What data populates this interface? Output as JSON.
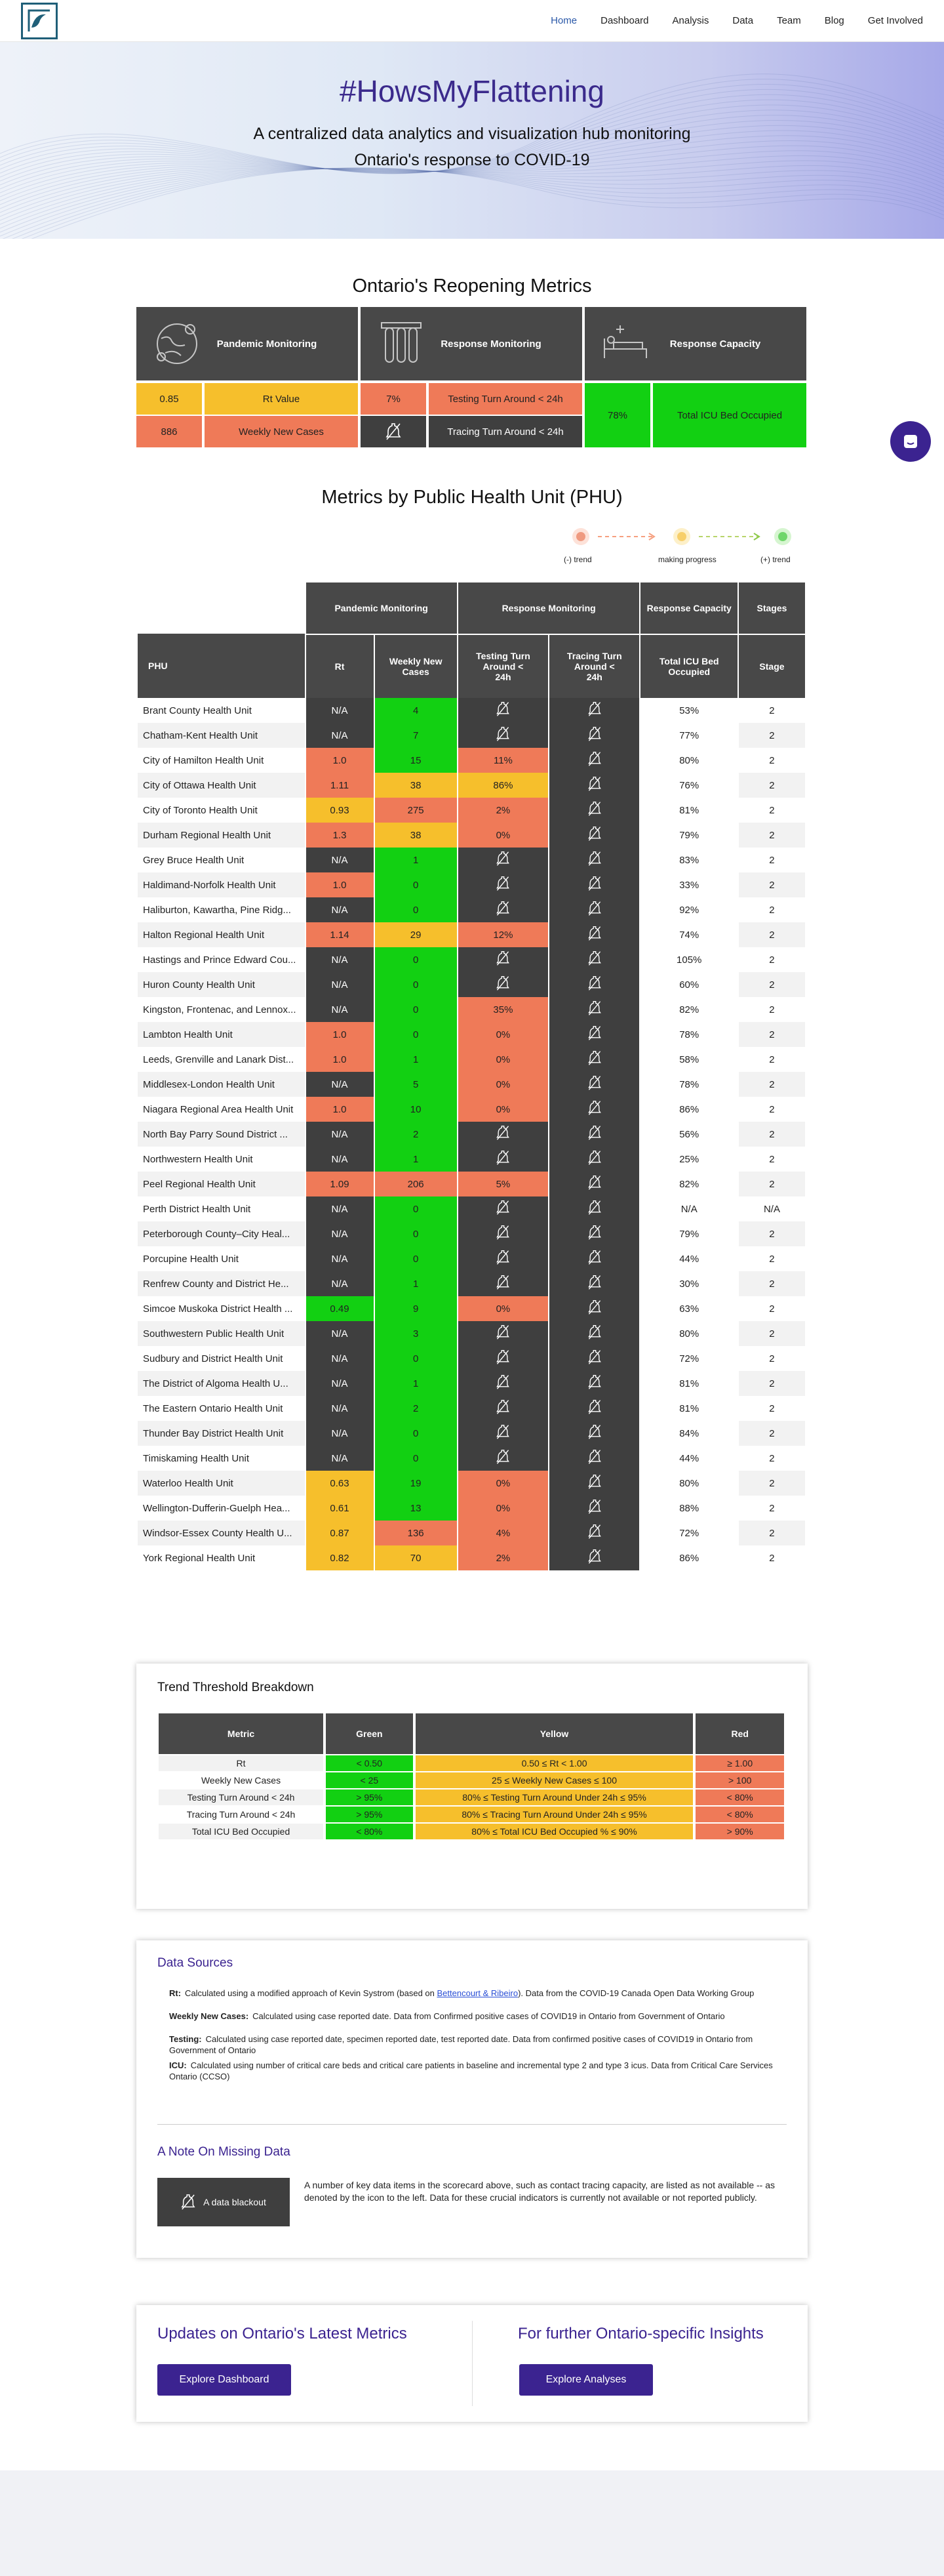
{
  "nav": {
    "logo": "logo-icon",
    "links": [
      "Home",
      "Dashboard",
      "Analysis",
      "Data",
      "Team",
      "Blog",
      "Get Involved"
    ],
    "active": "Home"
  },
  "hero": {
    "title": "#HowsMyFlattening",
    "subtitle_line1": "A centralized data analytics and visualization hub monitoring",
    "subtitle_line2": "Ontario's response to COVID-19"
  },
  "reopening": {
    "title": "Ontario's Reopening Metrics",
    "columns": [
      {
        "label": "Pandemic Monitoring",
        "icon": "virus-globe-icon"
      },
      {
        "label": "Response Monitoring",
        "icon": "test-tubes-icon"
      },
      {
        "label": "Response Capacity",
        "icon": "hospital-bed-icon"
      }
    ],
    "pandemic": [
      {
        "value": "0.85",
        "label": "Rt Value"
      },
      {
        "value": "886",
        "label": "Weekly New Cases"
      }
    ],
    "response": [
      {
        "value": "7%",
        "label": "Testing Turn Around < 24h"
      },
      {
        "value": "",
        "label": "Tracing Turn Around < 24h",
        "icon": "data-blackout-icon"
      }
    ],
    "capacity": {
      "value": "78%",
      "label": "Total ICU Bed Occupied"
    }
  },
  "phu": {
    "title": "Metrics by Public Health Unit (PHU)",
    "legend": {
      "neg": "(-) trend",
      "mid": "making progress",
      "pos": "(+) trend"
    },
    "group_headers": [
      "Pandemic Monitoring",
      "Response Monitoring",
      "Response Capacity",
      "Stages"
    ],
    "col_headers": [
      "PHU",
      "Rt",
      "Weekly New Cases",
      "Testing Turn Around < 24h",
      "Tracing Turn Around < 24h",
      "Total ICU Bed Occupied",
      "Stage"
    ],
    "rows": [
      [
        "Brant County Health Unit",
        "N/A",
        "4",
        "",
        "",
        "53%",
        "2"
      ],
      [
        "Chatham-Kent Health Unit",
        "N/A",
        "7",
        "",
        "",
        "77%",
        "2"
      ],
      [
        "City of Hamilton Health Unit",
        "1.0",
        "15",
        "11%",
        "",
        "80%",
        "2"
      ],
      [
        "City of Ottawa Health Unit",
        "1.11",
        "38",
        "86%",
        "",
        "76%",
        "2"
      ],
      [
        "City of Toronto Health Unit",
        "0.93",
        "275",
        "2%",
        "",
        "81%",
        "2"
      ],
      [
        "Durham Regional Health Unit",
        "1.3",
        "38",
        "0%",
        "",
        "79%",
        "2"
      ],
      [
        "Grey Bruce Health Unit",
        "N/A",
        "1",
        "",
        "",
        "83%",
        "2"
      ],
      [
        "Haldimand-Norfolk Health Unit",
        "1.0",
        "0",
        "",
        "",
        "33%",
        "2"
      ],
      [
        "Haliburton, Kawartha, Pine Ridg...",
        "N/A",
        "0",
        "",
        "",
        "92%",
        "2"
      ],
      [
        "Halton Regional Health Unit",
        "1.14",
        "29",
        "12%",
        "",
        "74%",
        "2"
      ],
      [
        "Hastings and Prince Edward Cou...",
        "N/A",
        "0",
        "",
        "",
        "105%",
        "2"
      ],
      [
        "Huron County Health Unit",
        "N/A",
        "0",
        "",
        "",
        "60%",
        "2"
      ],
      [
        "Kingston, Frontenac, and Lennox...",
        "N/A",
        "0",
        "35%",
        "",
        "82%",
        "2"
      ],
      [
        "Lambton Health Unit",
        "1.0",
        "0",
        "0%",
        "",
        "78%",
        "2"
      ],
      [
        "Leeds, Grenville and Lanark Dist...",
        "1.0",
        "1",
        "0%",
        "",
        "58%",
        "2"
      ],
      [
        "Middlesex-London Health Unit",
        "N/A",
        "5",
        "0%",
        "",
        "78%",
        "2"
      ],
      [
        "Niagara Regional Area Health Unit",
        "1.0",
        "10",
        "0%",
        "",
        "86%",
        "2"
      ],
      [
        "North Bay Parry Sound District ...",
        "N/A",
        "2",
        "",
        "",
        "56%",
        "2"
      ],
      [
        "Northwestern Health Unit",
        "N/A",
        "1",
        "",
        "",
        "25%",
        "2"
      ],
      [
        "Peel Regional Health Unit",
        "1.09",
        "206",
        "5%",
        "",
        "82%",
        "2"
      ],
      [
        "Perth District Health Unit",
        "N/A",
        "0",
        "",
        "",
        "N/A",
        "N/A"
      ],
      [
        "Peterborough County–City Heal...",
        "N/A",
        "0",
        "",
        "",
        "79%",
        "2"
      ],
      [
        "Porcupine Health Unit",
        "N/A",
        "0",
        "",
        "",
        "44%",
        "2"
      ],
      [
        "Renfrew County and District He...",
        "N/A",
        "1",
        "",
        "",
        "30%",
        "2"
      ],
      [
        "Simcoe Muskoka District Health ...",
        "0.49",
        "9",
        "0%",
        "",
        "63%",
        "2"
      ],
      [
        "Southwestern Public Health Unit",
        "N/A",
        "3",
        "",
        "",
        "80%",
        "2"
      ],
      [
        "Sudbury and District Health Unit",
        "N/A",
        "0",
        "",
        "",
        "72%",
        "2"
      ],
      [
        "The District of Algoma Health U...",
        "N/A",
        "1",
        "",
        "",
        "81%",
        "2"
      ],
      [
        "The Eastern Ontario Health Unit",
        "N/A",
        "2",
        "",
        "",
        "81%",
        "2"
      ],
      [
        "Thunder Bay District Health Unit",
        "N/A",
        "0",
        "",
        "",
        "84%",
        "2"
      ],
      [
        "Timiskaming Health Unit",
        "N/A",
        "0",
        "",
        "",
        "44%",
        "2"
      ],
      [
        "Waterloo Health Unit",
        "0.63",
        "19",
        "0%",
        "",
        "80%",
        "2"
      ],
      [
        "Wellington-Dufferin-Guelph Hea...",
        "0.61",
        "13",
        "0%",
        "",
        "88%",
        "2"
      ],
      [
        "Windsor-Essex County Health U...",
        "0.87",
        "136",
        "4%",
        "",
        "72%",
        "2"
      ],
      [
        "York Regional Health Unit",
        "0.82",
        "70",
        "2%",
        "",
        "86%",
        "2"
      ]
    ],
    "colors": [
      [
        "d",
        "g",
        "b",
        "g"
      ],
      [
        "d",
        "g",
        "b",
        "g"
      ],
      [
        "r",
        "g",
        "r",
        "y"
      ],
      [
        "r",
        "y",
        "y",
        "g"
      ],
      [
        "y",
        "r",
        "r",
        "y"
      ],
      [
        "r",
        "y",
        "r",
        "g"
      ],
      [
        "d",
        "g",
        "b",
        "y"
      ],
      [
        "r",
        "g",
        "b",
        "g"
      ],
      [
        "d",
        "g",
        "b",
        "r"
      ],
      [
        "r",
        "y",
        "r",
        "g"
      ],
      [
        "d",
        "g",
        "b",
        "r"
      ],
      [
        "d",
        "g",
        "b",
        "g"
      ],
      [
        "d",
        "g",
        "r",
        "y"
      ],
      [
        "r",
        "g",
        "r",
        "g"
      ],
      [
        "r",
        "g",
        "r",
        "g"
      ],
      [
        "d",
        "g",
        "r",
        "g"
      ],
      [
        "r",
        "g",
        "r",
        "y"
      ],
      [
        "d",
        "g",
        "b",
        "g"
      ],
      [
        "d",
        "g",
        "b",
        "g"
      ],
      [
        "r",
        "r",
        "r",
        "y"
      ],
      [
        "d",
        "g",
        "b",
        "d"
      ],
      [
        "d",
        "g",
        "b",
        "g"
      ],
      [
        "d",
        "g",
        "b",
        "g"
      ],
      [
        "d",
        "g",
        "b",
        "g"
      ],
      [
        "g",
        "g",
        "r",
        "g"
      ],
      [
        "d",
        "g",
        "b",
        "y"
      ],
      [
        "d",
        "g",
        "b",
        "g"
      ],
      [
        "d",
        "g",
        "b",
        "y"
      ],
      [
        "d",
        "g",
        "b",
        "y"
      ],
      [
        "d",
        "g",
        "b",
        "y"
      ],
      [
        "d",
        "g",
        "b",
        "g"
      ],
      [
        "y",
        "g",
        "r",
        "y"
      ],
      [
        "y",
        "g",
        "r",
        "y"
      ],
      [
        "y",
        "r",
        "r",
        "g"
      ],
      [
        "y",
        "y",
        "r",
        "y"
      ]
    ]
  },
  "threshold": {
    "title": "Trend Threshold Breakdown",
    "headers": [
      "Metric",
      "Green",
      "Yellow",
      "Red"
    ],
    "rows": [
      [
        "Rt",
        "< 0.50",
        "0.50 ≤ Rt < 1.00",
        "≥ 1.00"
      ],
      [
        "Weekly New Cases",
        "< 25",
        "25 ≤ Weekly New Cases ≤ 100",
        "> 100"
      ],
      [
        "Testing Turn Around < 24h",
        "> 95%",
        "80% ≤ Testing Turn Around Under 24h ≤ 95%",
        "< 80%"
      ],
      [
        "Tracing Turn Around < 24h",
        "> 95%",
        "80% ≤ Tracing Turn Around Under 24h ≤ 95%",
        "< 80%"
      ],
      [
        "Total ICU Bed Occupied",
        "< 80%",
        "80% ≤ Total ICU Bed Occupied % ≤ 90%",
        "> 90%"
      ]
    ]
  },
  "sources": {
    "title": "Data Sources",
    "rt_label": "Rt:",
    "rt_pre": "Calculated using a modified approach of Kevin Systrom (based on ",
    "rt_link": "Bettencourt & Ribeiro",
    "rt_post": "). Data from the COVID-19 Canada Open Data Working Group",
    "wnc_label": "Weekly New Cases:",
    "wnc_text": "Calculated using case reported date. Data from Confirmed positive cases of COVID19 in Ontario from Government of Ontario",
    "test_label": "Testing:",
    "test_text": "Calculated using case reported date, specimen reported date, test reported date. Data from confirmed positive cases of COVID19 in Ontario from Government of Ontario",
    "icu_label": "ICU:",
    "icu_text": "Calculated using number of critical care beds and critical care patients in baseline and incremental type 2 and type 3 icus. Data from Critical Care Services Ontario (CCSO)"
  },
  "missing": {
    "title": "A Note On Missing Data",
    "badge": "A data blackout",
    "text": "A number of key data items in the scorecard above, such as contact tracing capacity, are listed as not available -- as denoted by the icon to the left. Data for these crucial indicators is currently not available or not reported publicly."
  },
  "cta": {
    "left_title": "Updates on Ontario's Latest Metrics",
    "left_button": "Explore Dashboard",
    "right_title": "For further Ontario-specific Insights",
    "right_button": "Explore Analyses"
  },
  "colors": {
    "green": "#12d012",
    "yellow": "#f6bf2c",
    "red": "#ef7a58",
    "dark": "#3f3f3f",
    "purple": "#3b2390"
  }
}
